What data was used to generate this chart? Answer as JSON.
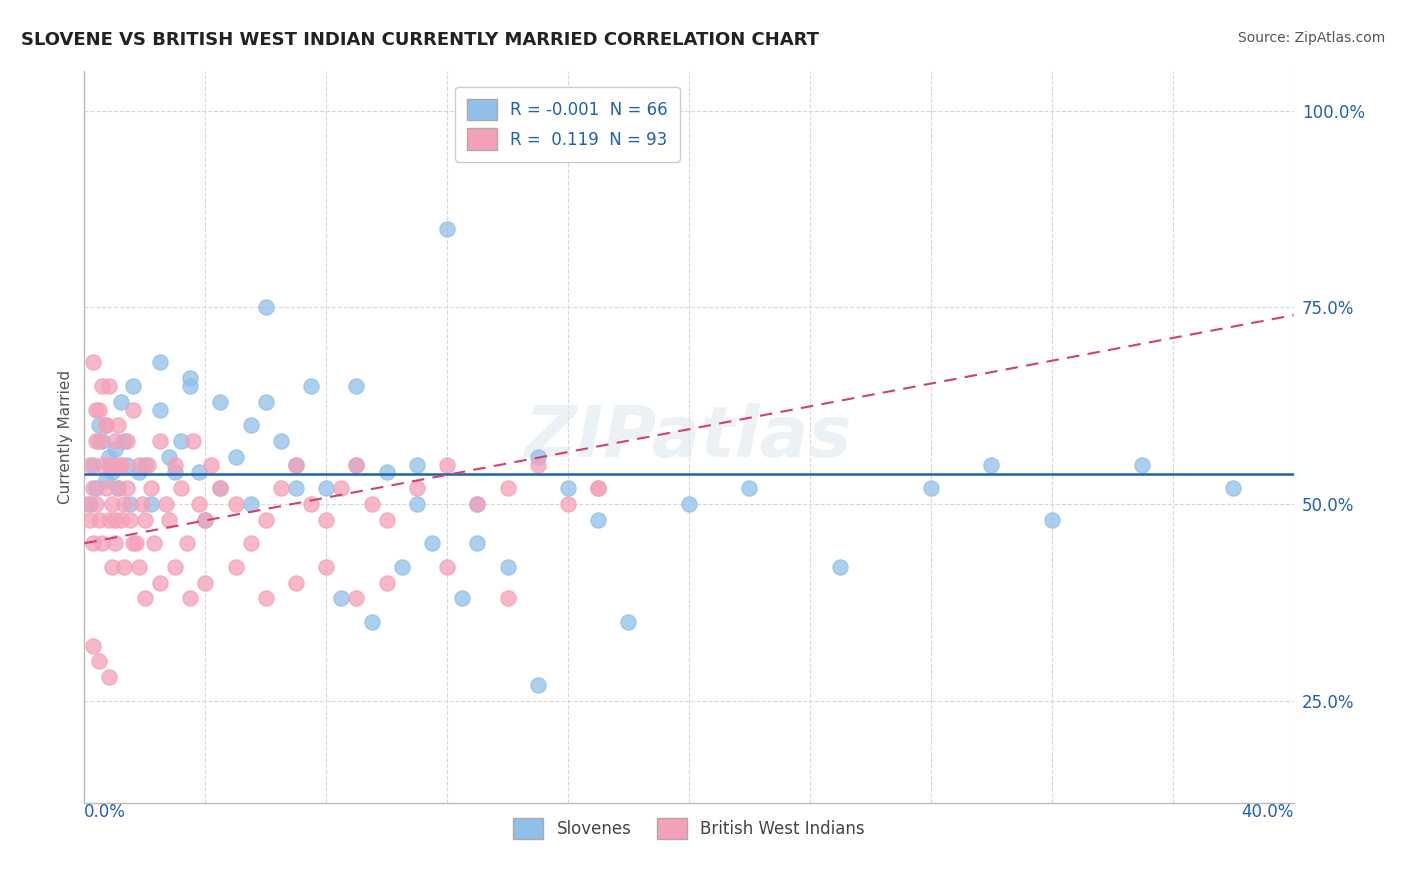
{
  "title": "SLOVENE VS BRITISH WEST INDIAN CURRENTLY MARRIED CORRELATION CHART",
  "source": "Source: ZipAtlas.com",
  "ylabel": "Currently Married",
  "ytick_labels": [
    "25.0%",
    "50.0%",
    "75.0%",
    "100.0%"
  ],
  "ytick_values": [
    0.25,
    0.5,
    0.75,
    1.0
  ],
  "xlim": [
    0.0,
    0.4
  ],
  "ylim": [
    0.12,
    1.05
  ],
  "legend_r1": "R = -0.001  N = 66",
  "legend_r2": "R =  0.119  N = 93",
  "slovene_color": "#90c0e8",
  "bwi_color": "#f4a0b8",
  "trend_slovene_color": "#2060b0",
  "trend_bwi_color": "#d04070",
  "background_color": "#ffffff",
  "grid_color": "#d8d8d8",
  "watermark": "ZIPatlas",
  "slovene_x": [
    0.002,
    0.003,
    0.004,
    0.005,
    0.006,
    0.007,
    0.008,
    0.009,
    0.01,
    0.011,
    0.012,
    0.013,
    0.014,
    0.015,
    0.016,
    0.018,
    0.02,
    0.022,
    0.025,
    0.028,
    0.03,
    0.032,
    0.035,
    0.038,
    0.04,
    0.045,
    0.05,
    0.055,
    0.06,
    0.065,
    0.07,
    0.08,
    0.09,
    0.1,
    0.11,
    0.12,
    0.13,
    0.14,
    0.15,
    0.16,
    0.17,
    0.18,
    0.2,
    0.22,
    0.25,
    0.28,
    0.3,
    0.32,
    0.35,
    0.38,
    0.025,
    0.035,
    0.045,
    0.055,
    0.07,
    0.085,
    0.095,
    0.105,
    0.115,
    0.125,
    0.06,
    0.075,
    0.09,
    0.11,
    0.13,
    0.15
  ],
  "slovene_y": [
    0.5,
    0.55,
    0.52,
    0.6,
    0.58,
    0.53,
    0.56,
    0.54,
    0.57,
    0.52,
    0.63,
    0.58,
    0.55,
    0.5,
    0.65,
    0.54,
    0.55,
    0.5,
    0.62,
    0.56,
    0.54,
    0.58,
    0.66,
    0.54,
    0.48,
    0.52,
    0.56,
    0.5,
    0.63,
    0.58,
    0.55,
    0.52,
    0.65,
    0.54,
    0.55,
    0.85,
    0.5,
    0.42,
    0.56,
    0.52,
    0.48,
    0.35,
    0.5,
    0.52,
    0.42,
    0.52,
    0.55,
    0.48,
    0.55,
    0.52,
    0.68,
    0.65,
    0.63,
    0.6,
    0.52,
    0.38,
    0.35,
    0.42,
    0.45,
    0.38,
    0.75,
    0.65,
    0.55,
    0.5,
    0.45,
    0.27
  ],
  "bwi_x": [
    0.001,
    0.002,
    0.002,
    0.003,
    0.003,
    0.004,
    0.004,
    0.005,
    0.005,
    0.006,
    0.006,
    0.007,
    0.007,
    0.008,
    0.008,
    0.009,
    0.009,
    0.01,
    0.01,
    0.011,
    0.011,
    0.012,
    0.012,
    0.013,
    0.013,
    0.014,
    0.015,
    0.016,
    0.017,
    0.018,
    0.019,
    0.02,
    0.021,
    0.022,
    0.023,
    0.025,
    0.027,
    0.028,
    0.03,
    0.032,
    0.034,
    0.036,
    0.038,
    0.04,
    0.042,
    0.045,
    0.05,
    0.055,
    0.06,
    0.065,
    0.07,
    0.075,
    0.08,
    0.085,
    0.09,
    0.095,
    0.1,
    0.11,
    0.12,
    0.13,
    0.14,
    0.15,
    0.16,
    0.17,
    0.003,
    0.004,
    0.005,
    0.006,
    0.007,
    0.008,
    0.009,
    0.01,
    0.012,
    0.014,
    0.016,
    0.018,
    0.02,
    0.025,
    0.03,
    0.035,
    0.04,
    0.05,
    0.06,
    0.07,
    0.08,
    0.09,
    0.1,
    0.12,
    0.14,
    0.003,
    0.005,
    0.008,
    0.17
  ],
  "bwi_y": [
    0.5,
    0.48,
    0.55,
    0.52,
    0.45,
    0.58,
    0.5,
    0.62,
    0.48,
    0.55,
    0.45,
    0.52,
    0.6,
    0.48,
    0.65,
    0.42,
    0.55,
    0.58,
    0.45,
    0.52,
    0.6,
    0.48,
    0.55,
    0.5,
    0.42,
    0.58,
    0.48,
    0.62,
    0.45,
    0.55,
    0.5,
    0.48,
    0.55,
    0.52,
    0.45,
    0.58,
    0.5,
    0.48,
    0.55,
    0.52,
    0.45,
    0.58,
    0.5,
    0.48,
    0.55,
    0.52,
    0.5,
    0.45,
    0.48,
    0.52,
    0.55,
    0.5,
    0.48,
    0.52,
    0.55,
    0.5,
    0.48,
    0.52,
    0.55,
    0.5,
    0.52,
    0.55,
    0.5,
    0.52,
    0.68,
    0.62,
    0.58,
    0.65,
    0.6,
    0.55,
    0.5,
    0.48,
    0.55,
    0.52,
    0.45,
    0.42,
    0.38,
    0.4,
    0.42,
    0.38,
    0.4,
    0.42,
    0.38,
    0.4,
    0.42,
    0.38,
    0.4,
    0.42,
    0.38,
    0.32,
    0.3,
    0.28,
    0.52
  ]
}
